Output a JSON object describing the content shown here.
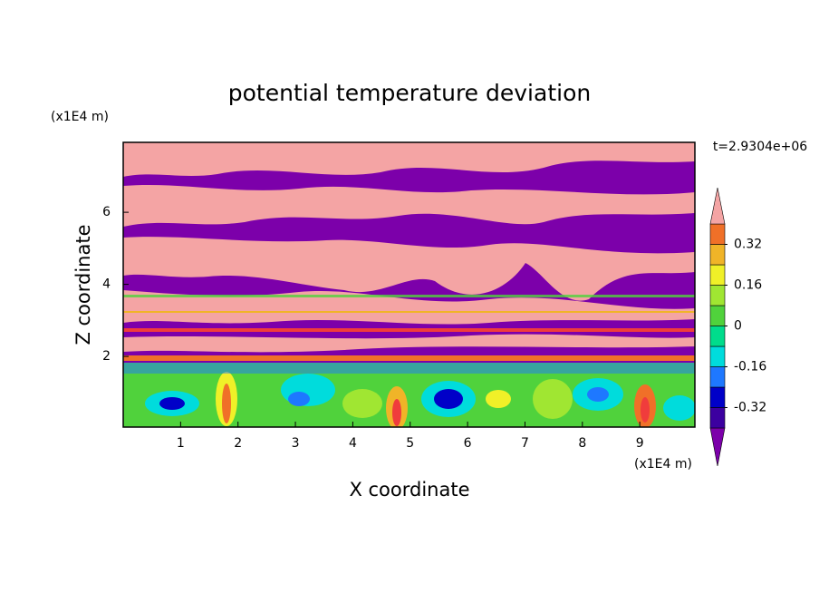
{
  "chart_data": {
    "type": "contour",
    "title": "potential temperature deviation",
    "xlabel": "X coordinate",
    "ylabel": "Z coordinate",
    "x_unit": "(x1E4 m)",
    "y_unit": "(x1E4 m)",
    "time_label": "t=2.9304e+06",
    "xlim": [
      0,
      9.96
    ],
    "xticks": [
      1,
      2,
      3,
      4,
      5,
      6,
      7,
      8,
      9
    ],
    "ylim": [
      0.04,
      7.94
    ],
    "yticks": [
      2,
      4,
      6
    ],
    "colorbar": {
      "levels": [
        -0.4,
        -0.32,
        -0.24,
        -0.16,
        -0.08,
        0,
        0.08,
        0.16,
        0.24,
        0.32,
        0.4
      ],
      "colors": [
        "#7c00aa",
        "#3c00a0",
        "#0000c8",
        "#1e78ff",
        "#00dcdc",
        "#00dc8c",
        "#50d23c",
        "#a0e632",
        "#f0f028",
        "#f0b428",
        "#f07028",
        "#f03c3c",
        "#f4a4a4"
      ],
      "ticks": [
        0.32,
        0.16,
        0,
        -0.16,
        -0.32
      ]
    }
  }
}
